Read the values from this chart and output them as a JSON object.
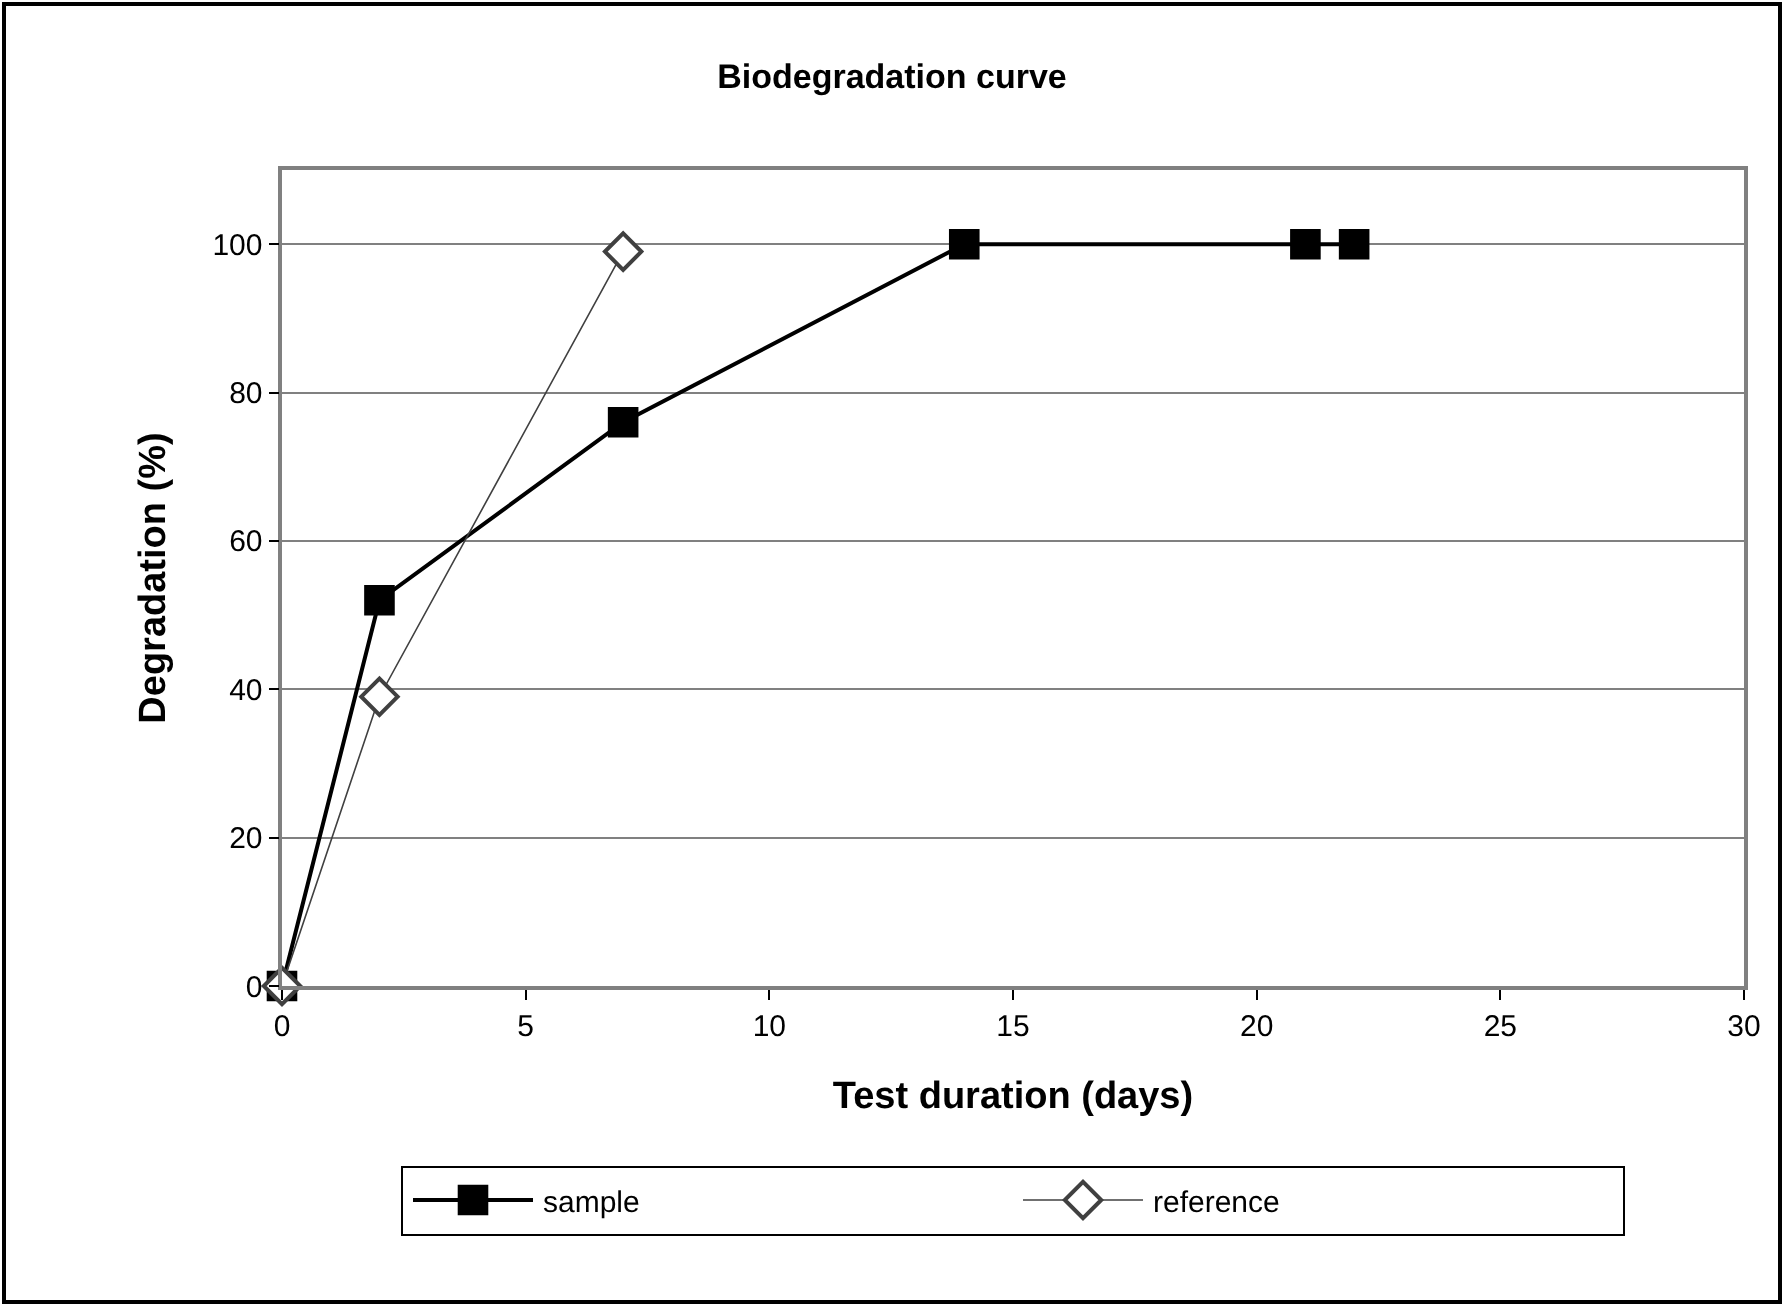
{
  "chart_data": {
    "type": "line",
    "title": "Biodegradation curve",
    "xlabel": "Test duration (days)",
    "ylabel": "Degradation (%)",
    "xlim": [
      0,
      30
    ],
    "xticks": [
      0,
      5,
      10,
      15,
      20,
      25,
      30
    ],
    "ylim": [
      0,
      110
    ],
    "yticks": [
      0,
      20,
      40,
      60,
      80,
      100
    ],
    "grid": "y",
    "legend": "bottom",
    "series": [
      {
        "name": "sample",
        "color": "#000000",
        "x": [
          0,
          2,
          7,
          14,
          21,
          22
        ],
        "values": [
          0,
          52,
          76,
          100,
          100,
          100
        ],
        "marker": "square"
      },
      {
        "name": "reference",
        "color": "#404040",
        "x": [
          0,
          2,
          7
        ],
        "values": [
          0,
          39,
          99
        ],
        "marker": "diamond"
      }
    ]
  }
}
